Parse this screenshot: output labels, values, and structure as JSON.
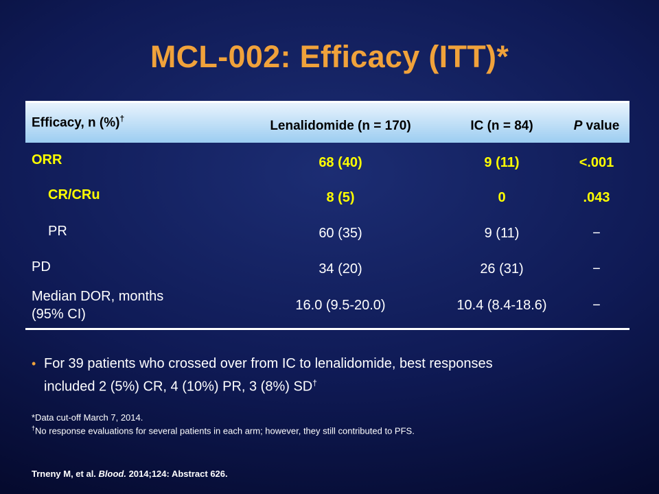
{
  "title": "MCL-002: Efficacy (ITT)*",
  "table": {
    "headers": {
      "efficacy": "Efficacy, n (%)",
      "efficacy_dagger": "†",
      "lenalidomide": "Lenalidomide (n = 170)",
      "ic": "IC (n = 84)",
      "p_italic": "P",
      "p_rest": " value"
    },
    "rows": [
      {
        "label": "ORR",
        "lenalidomide": "68 (40)",
        "ic": "9 (11)",
        "p": "<.001"
      },
      {
        "label": "CR/CRu",
        "lenalidomide": "8 (5)",
        "ic": "0",
        "p": ".043"
      },
      {
        "label": "PR",
        "lenalidomide": "60 (35)",
        "ic": "9 (11)",
        "p": "−"
      },
      {
        "label": "PD",
        "lenalidomide": "34 (20)",
        "ic": "26 (31)",
        "p": "−"
      },
      {
        "label_line1": "Median DOR, months",
        "label_line2": "(95% CI)",
        "lenalidomide": "16.0 (9.5-20.0)",
        "ic": "10.4 (8.4-18.6)",
        "p": "−"
      }
    ]
  },
  "bullet": {
    "line1": "For 39 patients who crossed over from IC to lenalidomide, best responses",
    "line2": "included 2 (5%) CR, 4 (10%) PR, 3 (8%) SD",
    "dagger": "†"
  },
  "footnotes": {
    "cutoff": "*Data cut-off March 7, 2014.",
    "dagger": "†",
    "evaluations": "No response evaluations for several patients in each arm; however, they still contributed to PFS."
  },
  "citation": {
    "authors": "Trneny M, et al. ",
    "journal": "Blood.",
    "details": " 2014;124: Abstract 626."
  },
  "colors": {
    "title": "#f0a23b",
    "highlight": "#ffff00",
    "header_band": "#9ccdf1",
    "background": "#0f1a55"
  }
}
